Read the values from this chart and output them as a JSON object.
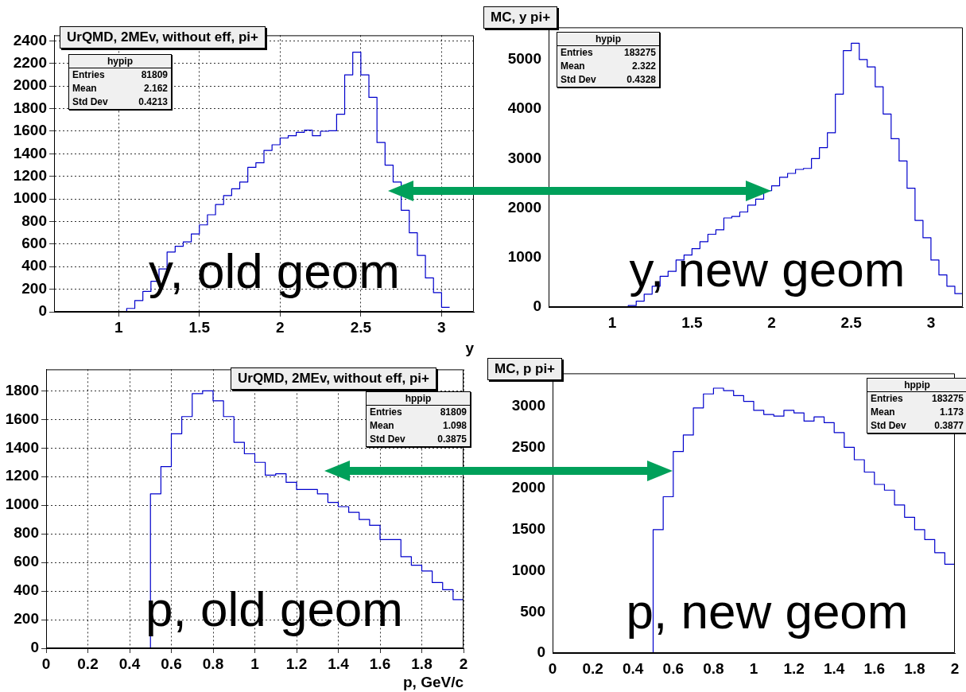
{
  "chart_data": [
    {
      "type": "histogram",
      "title": "UrQMD, 2MEv, without eff, pi+",
      "xlabel": "y",
      "color": "#0000cc",
      "grid": true,
      "bins": [
        1.0,
        1.05,
        1.1,
        1.15,
        1.2,
        1.25,
        1.3,
        1.35,
        1.4,
        1.45,
        1.5,
        1.55,
        1.6,
        1.65,
        1.7,
        1.75,
        1.8,
        1.85,
        1.9,
        1.95,
        2.0,
        2.05,
        2.1,
        2.15,
        2.2,
        2.25,
        2.3,
        2.35,
        2.4,
        2.45,
        2.5,
        2.55,
        2.6,
        2.65,
        2.7,
        2.75,
        2.8,
        2.85,
        2.9,
        2.95,
        3.0,
        3.05
      ],
      "values": [
        0,
        30,
        100,
        180,
        270,
        380,
        530,
        580,
        620,
        690,
        770,
        860,
        950,
        1030,
        1090,
        1150,
        1280,
        1320,
        1430,
        1480,
        1540,
        1560,
        1590,
        1610,
        1560,
        1600,
        1605,
        1750,
        2100,
        2300,
        2100,
        1900,
        1500,
        1300,
        1150,
        900,
        700,
        500,
        300,
        170,
        40
      ],
      "xlim": [
        0.6,
        3.2
      ],
      "xticks": [
        1,
        1.5,
        2,
        2.5,
        3
      ],
      "ylim": [
        0,
        2450
      ],
      "yticks": [
        0,
        200,
        400,
        600,
        800,
        1000,
        1200,
        1400,
        1600,
        1800,
        2000,
        2200,
        2400
      ],
      "annotations": [
        "hypip",
        "Entries 81809",
        "Mean 2.162",
        "Std Dev 0.4213",
        "y, old geom"
      ]
    },
    {
      "type": "histogram",
      "title": "MC, y pi+",
      "color": "#0000cc",
      "bins": [
        1.1,
        1.15,
        1.2,
        1.25,
        1.3,
        1.35,
        1.4,
        1.45,
        1.5,
        1.55,
        1.6,
        1.65,
        1.7,
        1.75,
        1.8,
        1.85,
        1.9,
        1.95,
        2.0,
        2.05,
        2.1,
        2.15,
        2.2,
        2.25,
        2.3,
        2.35,
        2.4,
        2.45,
        2.5,
        2.55,
        2.6,
        2.65,
        2.7,
        2.75,
        2.8,
        2.85,
        2.9,
        2.95,
        3.0,
        3.05,
        3.1,
        3.15,
        3.2
      ],
      "values": [
        30,
        120,
        260,
        420,
        620,
        720,
        950,
        1050,
        1180,
        1320,
        1470,
        1560,
        1800,
        1830,
        1920,
        2060,
        2180,
        2350,
        2450,
        2620,
        2700,
        2780,
        2800,
        3000,
        3220,
        3520,
        4300,
        5180,
        5330,
        5000,
        4850,
        4450,
        3900,
        3400,
        2950,
        2400,
        1750,
        1400,
        950,
        650,
        420,
        270
      ],
      "xlim": [
        0.6,
        3.2
      ],
      "xticks": [
        1,
        1.5,
        2,
        2.5,
        3
      ],
      "ylim": [
        0,
        5650
      ],
      "yticks": [
        0,
        1000,
        2000,
        3000,
        4000,
        5000
      ],
      "annotations": [
        "hypip",
        "Entries 183275",
        "Mean 2.322",
        "Std Dev 0.4328",
        "y, new geom"
      ]
    },
    {
      "type": "histogram",
      "title": "UrQMD, 2MEv, without eff, pi+",
      "xlabel": "p, GeV/c",
      "color": "#0000cc",
      "grid": true,
      "bins": [
        0.5,
        0.55,
        0.6,
        0.65,
        0.7,
        0.75,
        0.8,
        0.85,
        0.9,
        0.95,
        1.0,
        1.05,
        1.1,
        1.15,
        1.2,
        1.25,
        1.3,
        1.35,
        1.4,
        1.45,
        1.5,
        1.55,
        1.6,
        1.65,
        1.7,
        1.75,
        1.8,
        1.85,
        1.9,
        1.95,
        2.0
      ],
      "values": [
        1080,
        1270,
        1500,
        1620,
        1780,
        1800,
        1730,
        1620,
        1440,
        1360,
        1300,
        1210,
        1220,
        1160,
        1110,
        1110,
        1080,
        1020,
        990,
        950,
        900,
        860,
        760,
        760,
        640,
        580,
        540,
        460,
        410,
        340
      ],
      "xlim": [
        0,
        2
      ],
      "xticks": [
        0,
        0.2,
        0.4,
        0.6,
        0.8,
        1,
        1.2,
        1.4,
        1.6,
        1.8,
        2
      ],
      "ylim": [
        0,
        1950
      ],
      "yticks": [
        0,
        200,
        400,
        600,
        800,
        1000,
        1200,
        1400,
        1600,
        1800
      ],
      "annotations": [
        "hppip",
        "Entries 81809",
        "Mean 1.098",
        "Std Dev 0.3875",
        "p, old geom"
      ]
    },
    {
      "type": "histogram",
      "title": "MC, p pi+",
      "color": "#0000cc",
      "bins": [
        0.5,
        0.55,
        0.6,
        0.65,
        0.7,
        0.75,
        0.8,
        0.85,
        0.9,
        0.95,
        1.0,
        1.05,
        1.1,
        1.15,
        1.2,
        1.25,
        1.3,
        1.35,
        1.4,
        1.45,
        1.5,
        1.55,
        1.6,
        1.65,
        1.7,
        1.75,
        1.8,
        1.85,
        1.9,
        1.95,
        2.0
      ],
      "values": [
        1500,
        1900,
        2450,
        2650,
        2980,
        3150,
        3220,
        3190,
        3130,
        3060,
        2950,
        2900,
        2880,
        2950,
        2920,
        2820,
        2870,
        2800,
        2680,
        2500,
        2350,
        2200,
        2050,
        1980,
        1800,
        1650,
        1500,
        1380,
        1220,
        1080
      ],
      "xlim": [
        0,
        2
      ],
      "xticks": [
        0,
        0.2,
        0.4,
        0.6,
        0.8,
        1,
        1.2,
        1.4,
        1.6,
        1.8,
        2
      ],
      "ylim": [
        0,
        3400
      ],
      "yticks": [
        0,
        500,
        1000,
        1500,
        2000,
        2500,
        3000
      ],
      "annotations": [
        "hppip",
        "Entries 183275",
        "Mean 1.173",
        "Std Dev 0.3877",
        "p, new geom"
      ]
    }
  ]
}
